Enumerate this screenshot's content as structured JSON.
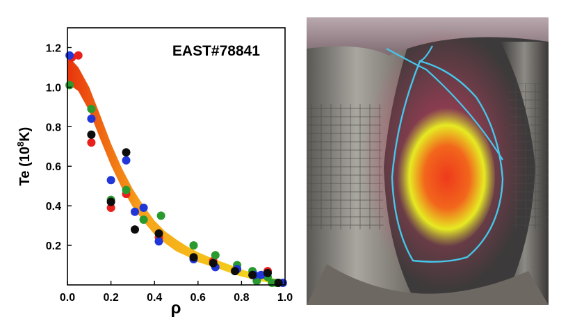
{
  "chart_data": {
    "type": "scatter",
    "annotation": "EAST#78841",
    "xlabel": "ρ",
    "ylabel": {
      "base": "Te (10",
      "exponent": "8",
      "unit": "K)"
    },
    "xlim": [
      0,
      1.0
    ],
    "ylim": [
      0,
      1.3
    ],
    "x_ticks": [
      "0.0",
      "0.2",
      "0.4",
      "0.6",
      "0.8",
      "1.0"
    ],
    "y_ticks": [
      "0.2",
      "0.4",
      "0.6",
      "0.8",
      "1.0",
      "1.2"
    ],
    "fit_band": {
      "description": "smoothed profile band, orange at core fading to yellow at edge",
      "rho": [
        0.0,
        0.05,
        0.1,
        0.15,
        0.2,
        0.25,
        0.3,
        0.35,
        0.4,
        0.45,
        0.5,
        0.55,
        0.6,
        0.65,
        0.7,
        0.75,
        0.8,
        0.85,
        0.9,
        0.95,
        1.0
      ],
      "center": [
        1.09,
        1.04,
        0.94,
        0.8,
        0.66,
        0.54,
        0.44,
        0.36,
        0.29,
        0.24,
        0.2,
        0.17,
        0.14,
        0.12,
        0.1,
        0.08,
        0.06,
        0.045,
        0.03,
        0.02,
        0.01
      ],
      "half_width": [
        0.07,
        0.06,
        0.06,
        0.06,
        0.055,
        0.05,
        0.045,
        0.04,
        0.035,
        0.03,
        0.03,
        0.025,
        0.025,
        0.022,
        0.02,
        0.02,
        0.018,
        0.016,
        0.014,
        0.012,
        0.01
      ],
      "color_core": "#e8340c",
      "color_mid": "#f7a41a",
      "color_edge": "#f2e21b"
    },
    "series": [
      {
        "name": "red",
        "color": "#e8201c",
        "points": [
          [
            0.05,
            1.16
          ],
          [
            0.11,
            0.72
          ],
          [
            0.2,
            0.39
          ],
          [
            0.27,
            0.46
          ],
          [
            0.42,
            0.24
          ],
          [
            0.67,
            0.12
          ],
          [
            0.92,
            0.07
          ],
          [
            0.02,
            1.15
          ]
        ]
      },
      {
        "name": "green",
        "color": "#2a9a2e",
        "points": [
          [
            0.01,
            1.01
          ],
          [
            0.11,
            0.89
          ],
          [
            0.2,
            0.43
          ],
          [
            0.27,
            0.48
          ],
          [
            0.35,
            0.33
          ],
          [
            0.43,
            0.35
          ],
          [
            0.58,
            0.2
          ],
          [
            0.68,
            0.15
          ],
          [
            0.78,
            0.1
          ],
          [
            0.85,
            0.07
          ],
          [
            0.87,
            0.02
          ],
          [
            0.92,
            0.04
          ],
          [
            0.94,
            0.01
          ],
          [
            0.96,
            0.0
          ]
        ]
      },
      {
        "name": "blue",
        "color": "#2036d8",
        "points": [
          [
            0.01,
            1.16
          ],
          [
            0.11,
            0.84
          ],
          [
            0.2,
            0.53
          ],
          [
            0.27,
            0.63
          ],
          [
            0.31,
            0.37
          ],
          [
            0.35,
            0.39
          ],
          [
            0.42,
            0.22
          ],
          [
            0.58,
            0.13
          ],
          [
            0.68,
            0.09
          ],
          [
            0.78,
            0.08
          ],
          [
            0.86,
            0.05
          ],
          [
            0.89,
            0.05
          ],
          [
            0.99,
            0.01
          ]
        ]
      },
      {
        "name": "black",
        "color": "#0c0c0c",
        "points": [
          [
            0.11,
            0.76
          ],
          [
            0.2,
            0.42
          ],
          [
            0.27,
            0.67
          ],
          [
            0.31,
            0.28
          ],
          [
            0.42,
            0.26
          ],
          [
            0.58,
            0.14
          ],
          [
            0.67,
            0.11
          ],
          [
            0.77,
            0.07
          ],
          [
            0.85,
            0.05
          ],
          [
            0.92,
            0.06
          ],
          [
            0.97,
            0.0
          ]
        ]
      }
    ]
  },
  "photo": {
    "subject": "tokamak-vessel-with-plasma-cross-section",
    "boundary_color": "#46c7ec",
    "plasma_core_color": "#ee3a1c",
    "plasma_edge_color": "#e6ea22",
    "glow_color": "#e8406a"
  }
}
